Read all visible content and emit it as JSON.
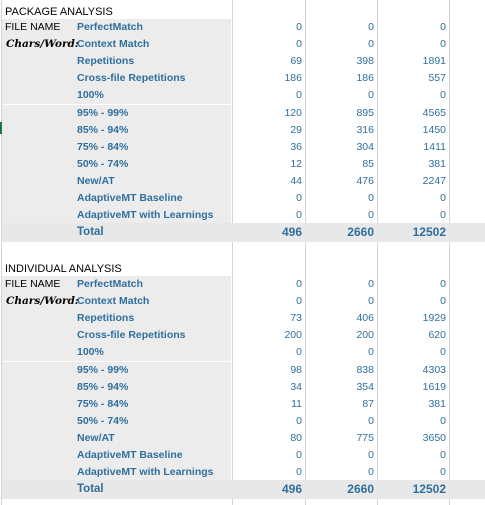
{
  "colors": {
    "label_blue": "#2f6f9e",
    "shade": "#ececec",
    "gridline": "#d4d4d4"
  },
  "header_labels": {
    "file_name": "FILE NAME",
    "chars_word": "Chars/Word:"
  },
  "package": {
    "title": "PACKAGE ANALYSIS",
    "rows": [
      {
        "label": "PerfectMatch",
        "v1": "0",
        "v2": "0",
        "v3": "0"
      },
      {
        "label": "Context Match",
        "v1": "0",
        "v2": "0",
        "v3": "0"
      },
      {
        "label": "Repetitions",
        "v1": "69",
        "v2": "398",
        "v3": "1891"
      },
      {
        "label": "Cross-file Repetitions",
        "v1": "186",
        "v2": "186",
        "v3": "557"
      },
      {
        "label": "100%",
        "v1": "0",
        "v2": "0",
        "v3": "0"
      },
      {
        "label": "95% - 99%",
        "v1": "120",
        "v2": "895",
        "v3": "4565"
      },
      {
        "label": "85% - 94%",
        "v1": "29",
        "v2": "316",
        "v3": "1450"
      },
      {
        "label": "75% - 84%",
        "v1": "36",
        "v2": "304",
        "v3": "1411"
      },
      {
        "label": "50% - 74%",
        "v1": "12",
        "v2": "85",
        "v3": "381"
      },
      {
        "label": "New/AT",
        "v1": "44",
        "v2": "476",
        "v3": "2247"
      },
      {
        "label": "AdaptiveMT Baseline",
        "v1": "0",
        "v2": "0",
        "v3": "0"
      },
      {
        "label": "AdaptiveMT with Learnings",
        "v1": "0",
        "v2": "0",
        "v3": "0"
      }
    ],
    "total": {
      "label": "Total",
      "v1": "496",
      "v2": "2660",
      "v3": "12502"
    }
  },
  "individual": {
    "title": "INDIVIDUAL ANALYSIS",
    "rows": [
      {
        "label": "PerfectMatch",
        "v1": "0",
        "v2": "0",
        "v3": "0"
      },
      {
        "label": "Context Match",
        "v1": "0",
        "v2": "0",
        "v3": "0"
      },
      {
        "label": "Repetitions",
        "v1": "73",
        "v2": "406",
        "v3": "1929"
      },
      {
        "label": "Cross-file Repetitions",
        "v1": "200",
        "v2": "200",
        "v3": "620"
      },
      {
        "label": "100%",
        "v1": "0",
        "v2": "0",
        "v3": "0"
      },
      {
        "label": "95% - 99%",
        "v1": "98",
        "v2": "838",
        "v3": "4303"
      },
      {
        "label": "85% - 94%",
        "v1": "34",
        "v2": "354",
        "v3": "1619"
      },
      {
        "label": "75% - 84%",
        "v1": "11",
        "v2": "87",
        "v3": "381"
      },
      {
        "label": "50% - 74%",
        "v1": "0",
        "v2": "0",
        "v3": "0"
      },
      {
        "label": "New/AT",
        "v1": "80",
        "v2": "775",
        "v3": "3650"
      },
      {
        "label": "AdaptiveMT Baseline",
        "v1": "0",
        "v2": "0",
        "v3": "0"
      },
      {
        "label": "AdaptiveMT with Learnings",
        "v1": "0",
        "v2": "0",
        "v3": "0"
      }
    ],
    "total": {
      "label": "Total",
      "v1": "496",
      "v2": "2660",
      "v3": "12502"
    }
  }
}
